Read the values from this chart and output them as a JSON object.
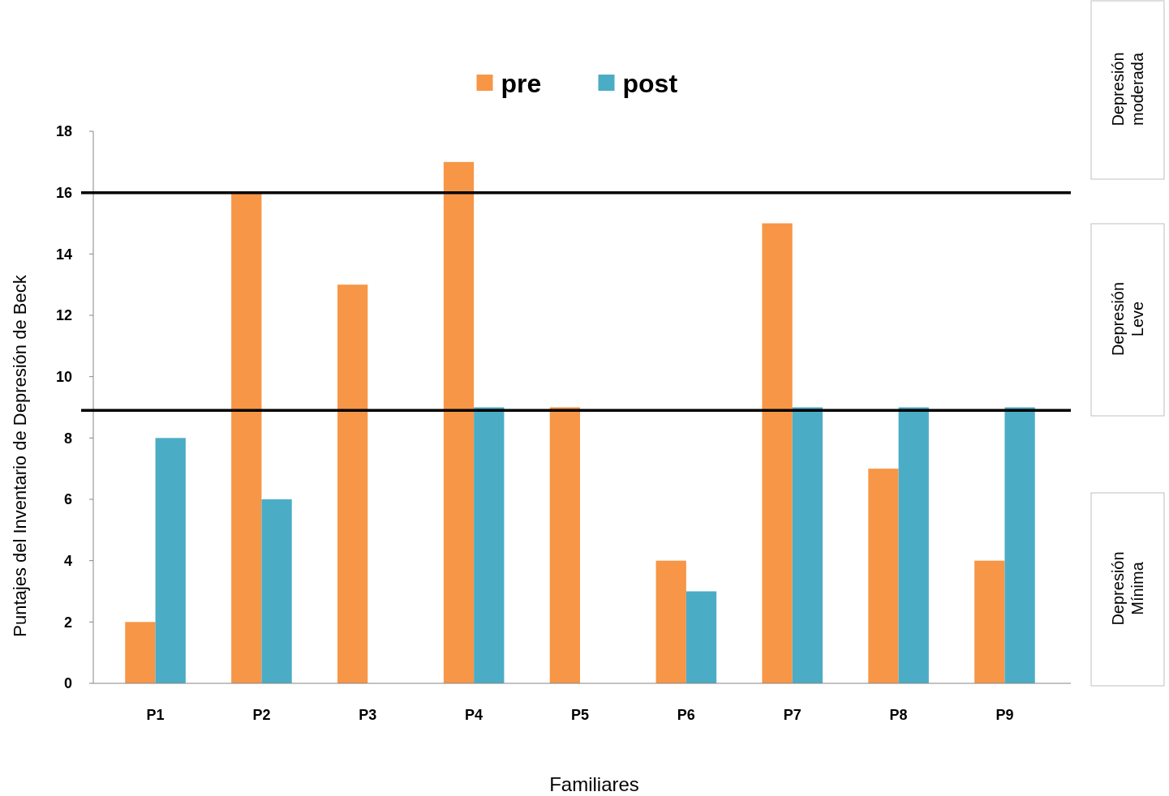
{
  "chart_data": {
    "type": "bar",
    "xlabel": "Familiares",
    "ylabel": "Puntajes del Inventario de Depresión de Beck",
    "categories": [
      "P1",
      "P2",
      "P3",
      "P4",
      "P5",
      "P6",
      "P7",
      "P8",
      "P9"
    ],
    "series": [
      {
        "name": "pre",
        "color": "#f79646",
        "values": [
          2,
          16,
          13,
          17,
          9,
          4,
          15,
          7,
          4
        ]
      },
      {
        "name": "post",
        "color": "#4bacc6",
        "values": [
          8,
          6,
          0,
          9,
          0,
          3,
          9,
          9,
          9
        ]
      }
    ],
    "ylim": [
      0,
      18
    ],
    "yticks": [
      0,
      2,
      4,
      6,
      8,
      10,
      12,
      14,
      16,
      18
    ],
    "grid": false,
    "legend": "top",
    "ref_lines": [
      {
        "axis": "y",
        "value": 16,
        "color": "#000000"
      },
      {
        "axis": "y",
        "value": 8.9,
        "color": "#000000"
      }
    ],
    "annotations": [
      "Depresión moderada",
      "Depresión Leve",
      "Depresión Mínima"
    ]
  }
}
